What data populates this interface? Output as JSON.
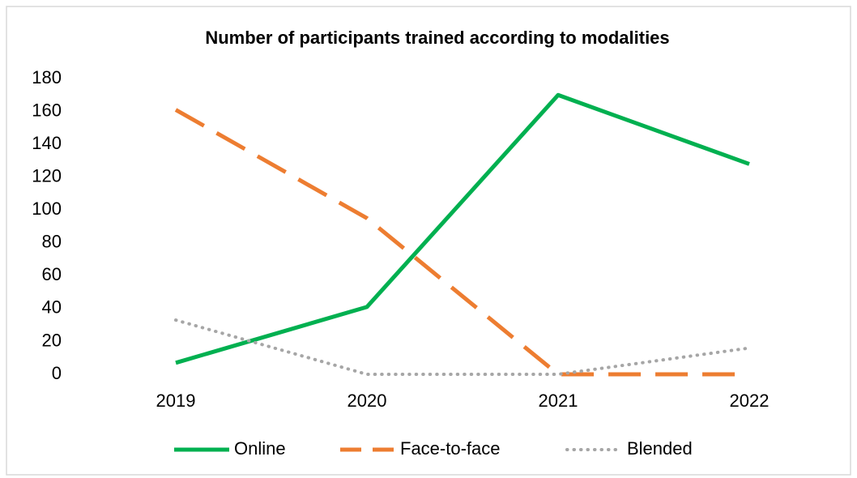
{
  "chart_data": {
    "type": "line",
    "title": "Number of participants trained according to modalities",
    "categories": [
      "2019",
      "2020",
      "2021",
      "2022"
    ],
    "series": [
      {
        "name": "Online",
        "color": "#00b050",
        "dash": "solid",
        "values": [
          7,
          41,
          170,
          128
        ]
      },
      {
        "name": "Face-to-face",
        "color": "#ed7d31",
        "dash": "dashed",
        "values": [
          161,
          95,
          0,
          0
        ]
      },
      {
        "name": "Blended",
        "color": "#a6a6a6",
        "dash": "dotted",
        "values": [
          33,
          0,
          0,
          16
        ]
      }
    ],
    "ylim": [
      0,
      180
    ],
    "yticks": [
      0,
      20,
      40,
      60,
      80,
      100,
      120,
      140,
      160,
      180
    ],
    "grid": false,
    "legend": "bottom"
  }
}
